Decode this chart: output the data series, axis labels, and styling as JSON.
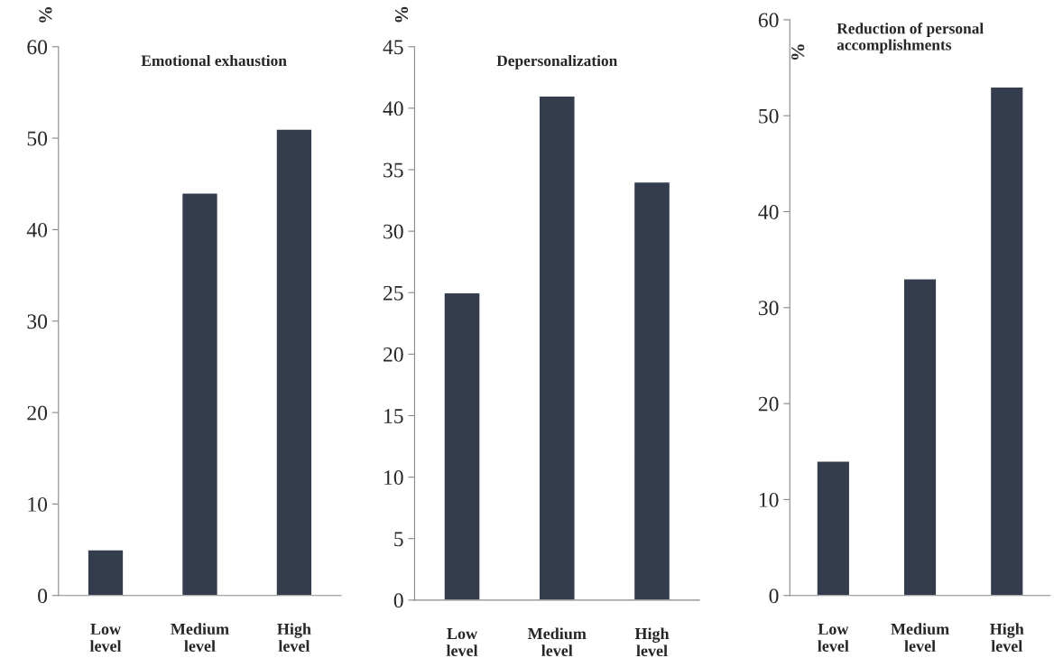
{
  "chart_data": [
    {
      "type": "bar",
      "title": "Emotional exhaustion",
      "ylabel": "%",
      "categories": [
        "Low\nlevel",
        "Medium\nlevel",
        "High\nlevel"
      ],
      "values": [
        5,
        44,
        51
      ],
      "color": "#333d4e",
      "ylim": [
        0,
        60
      ],
      "yticks": [
        0,
        10,
        20,
        30,
        40,
        50,
        60
      ],
      "grid": false,
      "legend": false
    },
    {
      "type": "bar",
      "title": "Depersonalization",
      "ylabel": "%",
      "categories": [
        "Low\nlevel",
        "Medium\nlevel",
        "High\nlevel"
      ],
      "values": [
        25,
        41,
        34
      ],
      "color": "#333d4e",
      "ylim": [
        0,
        45
      ],
      "yticks": [
        0,
        5,
        10,
        15,
        20,
        25,
        30,
        35,
        40,
        45
      ],
      "grid": false,
      "legend": false
    },
    {
      "type": "bar",
      "title": "Reduction of personal\naccomplishments",
      "ylabel": "%",
      "categories": [
        "Low\nlevel",
        "Medium\nlevel",
        "High\nlevel"
      ],
      "values": [
        14,
        33,
        53
      ],
      "color": "#333d4e",
      "ylim": [
        0,
        60
      ],
      "yticks": [
        0,
        10,
        20,
        30,
        40,
        50,
        60
      ],
      "grid": false,
      "legend": false
    }
  ]
}
